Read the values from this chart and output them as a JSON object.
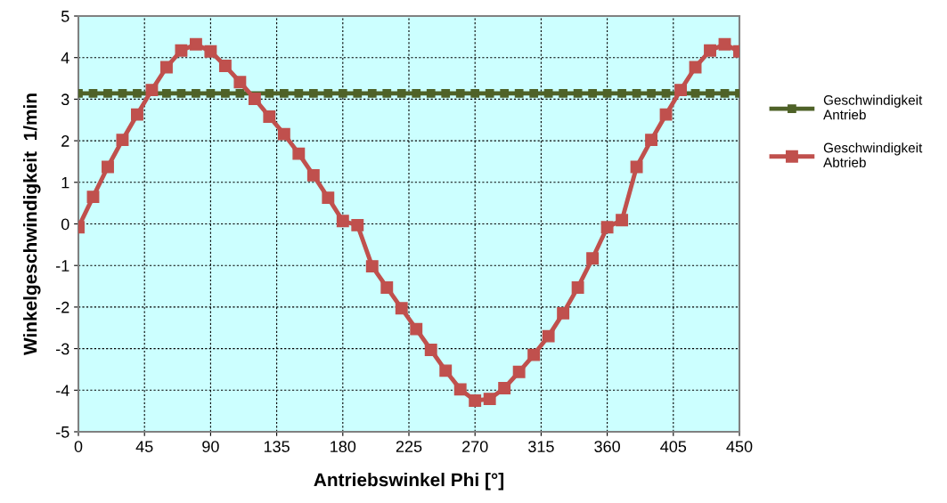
{
  "chart_data": {
    "type": "line",
    "xlabel": "Antriebswinkel Phi [°]",
    "ylabel": "Winkelgeschwindigkeit  1/min",
    "x": [
      0,
      10,
      20,
      30,
      40,
      50,
      60,
      70,
      80,
      90,
      100,
      110,
      120,
      130,
      140,
      150,
      160,
      170,
      180,
      190,
      200,
      210,
      220,
      230,
      240,
      250,
      260,
      270,
      280,
      290,
      300,
      310,
      320,
      330,
      340,
      350,
      360,
      370,
      380,
      390,
      400,
      410,
      420,
      430,
      440,
      450
    ],
    "series": [
      {
        "name": "Geschwindigkeit\nAntrieb",
        "color": "#4f6228",
        "marker": "square",
        "values": [
          3.14,
          3.14,
          3.14,
          3.14,
          3.14,
          null,
          3.14,
          3.14,
          3.14,
          3.14,
          3.14,
          3.14,
          null,
          3.14,
          3.14,
          3.14,
          3.14,
          3.14,
          3.14,
          3.14,
          3.14,
          3.14,
          3.14,
          3.14,
          3.14,
          3.14,
          3.14,
          3.14,
          3.14,
          3.14,
          3.14,
          3.14,
          3.14,
          3.14,
          3.14,
          3.14,
          3.14,
          3.14,
          3.14,
          3.14,
          3.14,
          null,
          3.14,
          3.14,
          3.14,
          3.14
        ]
      },
      {
        "name": "Geschwindigkeit\nAbtrieb",
        "color": "#c0504d",
        "marker": "square",
        "values": [
          -0.08,
          0.65,
          1.37,
          2.02,
          2.63,
          3.22,
          3.77,
          4.17,
          4.32,
          4.15,
          3.8,
          3.41,
          3.01,
          2.58,
          2.16,
          1.69,
          1.17,
          0.63,
          0.07,
          -0.03,
          -1.02,
          -1.53,
          -2.03,
          -2.53,
          -3.03,
          -3.53,
          -3.98,
          -4.25,
          -4.21,
          -3.95,
          -3.56,
          -3.15,
          -2.7,
          -2.15,
          -1.53,
          -0.83,
          -0.08,
          0.09,
          1.37,
          2.02,
          2.63,
          3.22,
          3.77,
          4.17,
          4.32,
          4.15
        ]
      }
    ],
    "xlim": [
      0,
      450
    ],
    "xticks": [
      0,
      45,
      90,
      135,
      180,
      225,
      270,
      315,
      360,
      405,
      450
    ],
    "ylim": [
      -5,
      5
    ],
    "yticks": [
      -5,
      -4,
      -3,
      -2,
      -1,
      0,
      1,
      2,
      3,
      4,
      5
    ],
    "grid": true,
    "legend": "right",
    "line_style": "solid"
  }
}
